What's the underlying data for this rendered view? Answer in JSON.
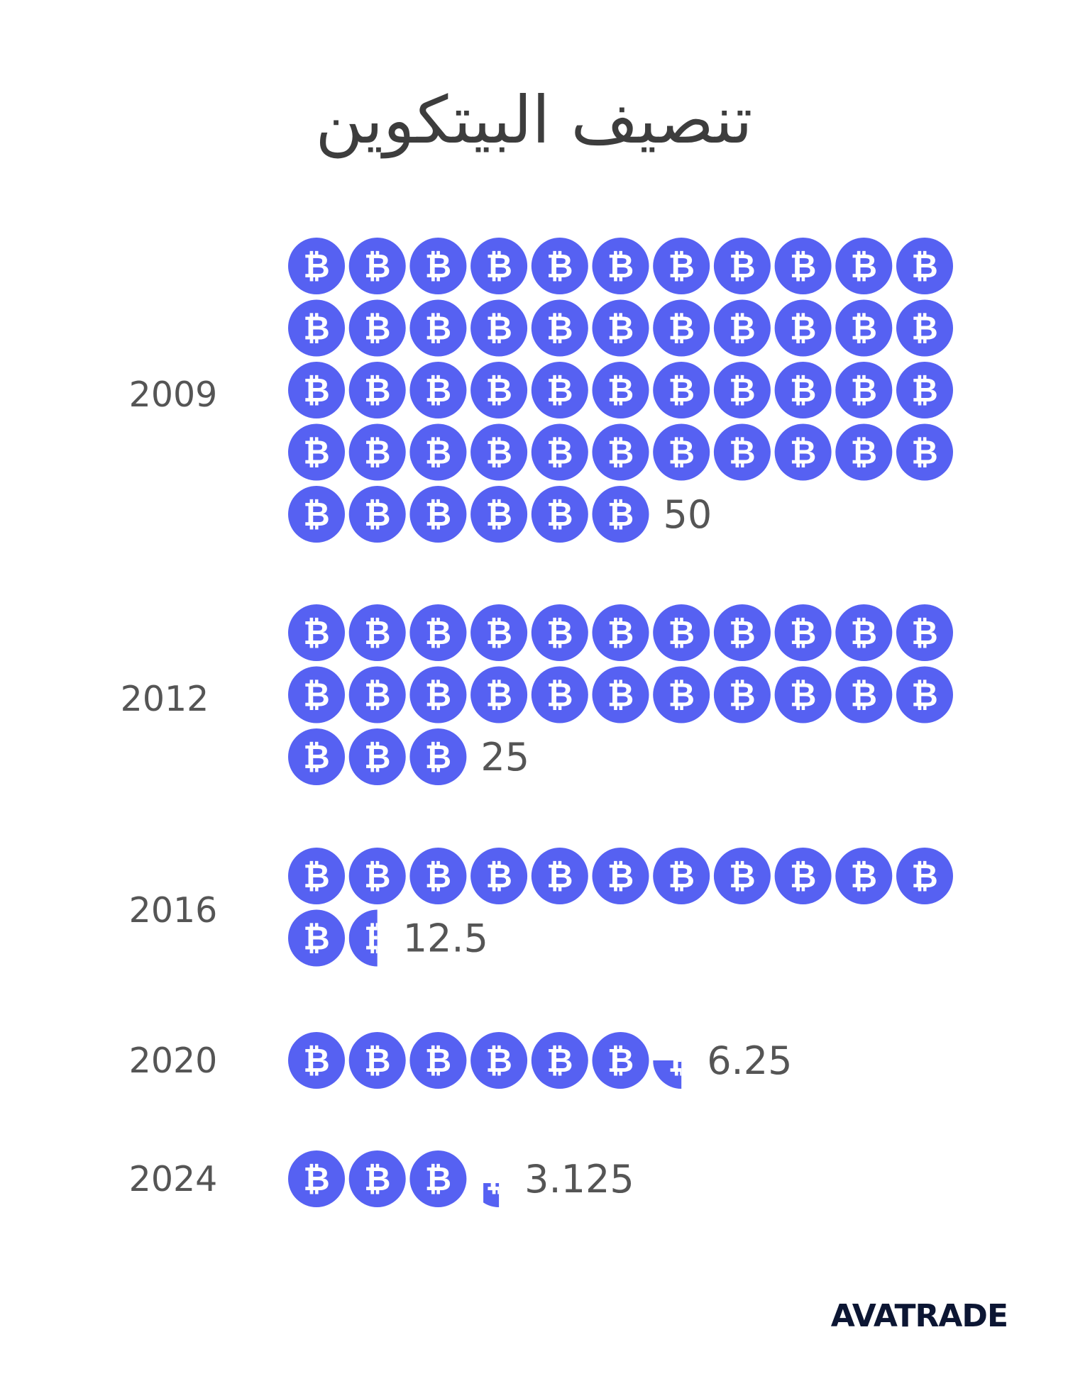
{
  "title": "تنصيف البيتكوين",
  "brand": {
    "name": "AVATRADE"
  },
  "colors": {
    "coin": "#5661f2",
    "coin_glyph": "#ffffff",
    "text": "#555555",
    "brand": "#0c1633"
  },
  "coin_glyph": "₿",
  "chart_data": {
    "type": "pictograph",
    "title": "تنصيف البيتكوين",
    "unit_per_icon": 1,
    "icons_per_row": 11,
    "categories": [
      "2009",
      "2012",
      "2016",
      "2020",
      "2024"
    ],
    "values": [
      50,
      25,
      12.5,
      6.25,
      3.125
    ],
    "value_labels": [
      "50",
      "25",
      "12.5",
      "6.25",
      "3.125"
    ]
  }
}
